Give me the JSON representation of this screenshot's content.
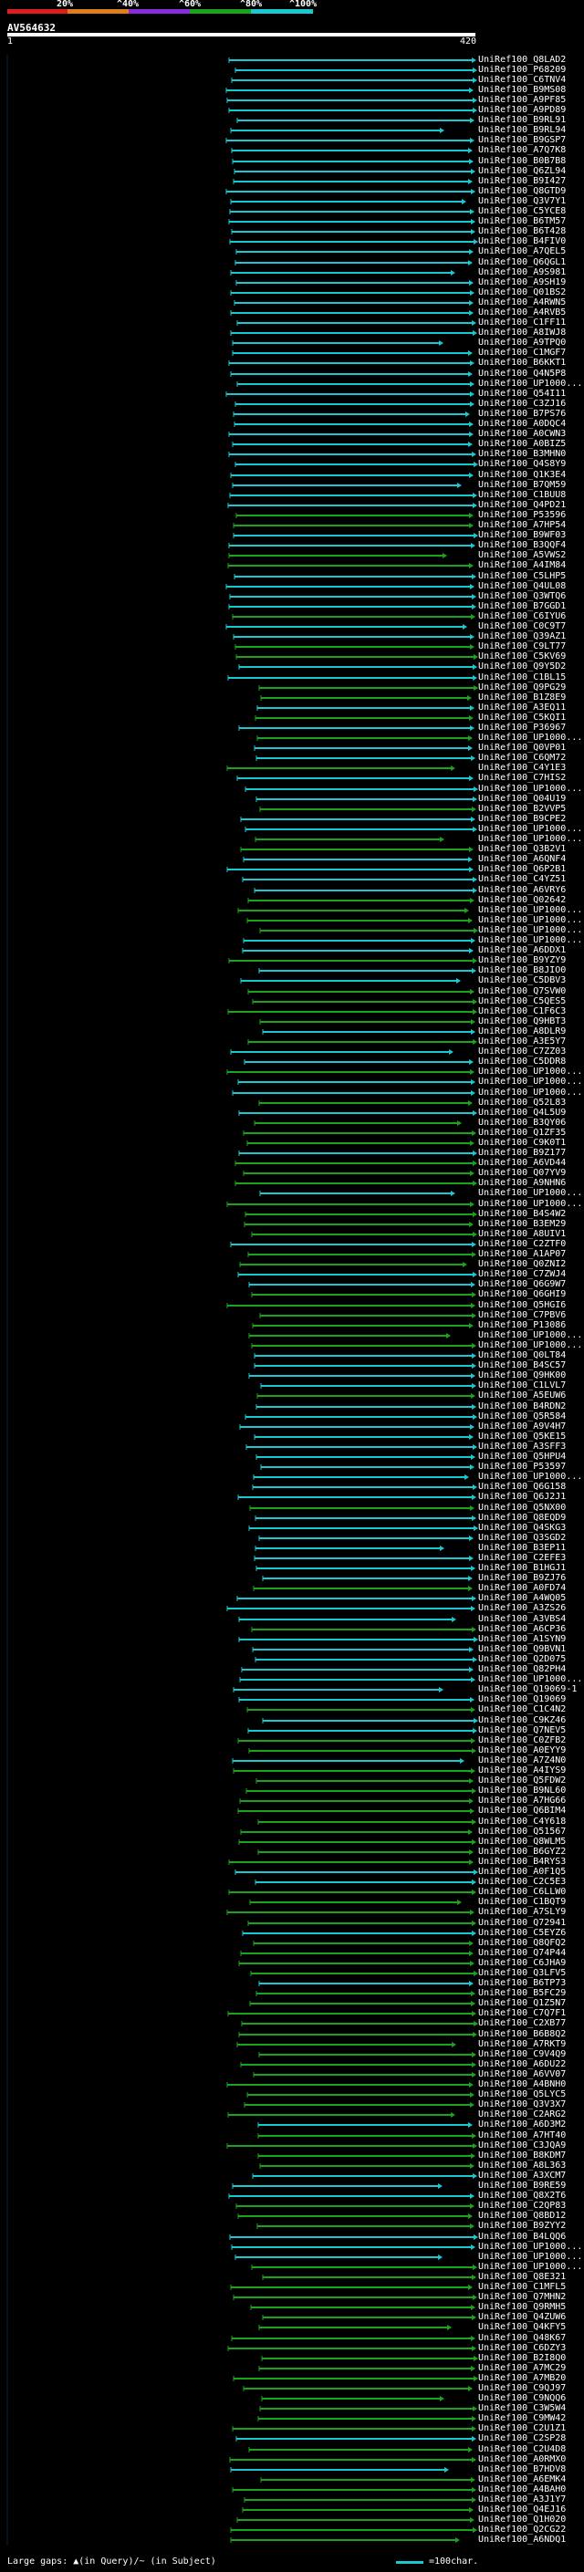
{
  "legend": {
    "labels": [
      "20%",
      "^40%",
      "^60%",
      "^80%",
      "^100%"
    ],
    "colors": [
      "#e01c1c",
      "#e07e1c",
      "#8a2be2",
      "#1ca31c",
      "#19c9d1"
    ]
  },
  "query": {
    "title": "AV564632",
    "scale_start": "1",
    "scale_end": "420"
  },
  "hits": [
    "UniRef100_Q8LAD2",
    "UniRef100_P68209",
    "UniRef100_C6TNV4",
    "UniRef100_B9MS08",
    "UniRef100_A9PF85",
    "UniRef100_A9PD89",
    "UniRef100_B9RL91",
    "UniRef100_B9RL94",
    "UniRef100_B9GSP7",
    "UniRef100_A7Q7K8",
    "UniRef100_B0B7B8",
    "UniRef100_Q6ZL94",
    "UniRef100_B9I427",
    "UniRef100_Q8GTD9",
    "UniRef100_Q3V7Y1",
    "UniRef100_C5YCE8",
    "UniRef100_B6TM57",
    "UniRef100_B6T428",
    "UniRef100_B4FIV0",
    "UniRef100_A7QEL5",
    "UniRef100_Q6QGL1",
    "UniRef100_A9S981",
    "UniRef100_A9SH19",
    "UniRef100_Q01BS2",
    "UniRef100_A4RWN5",
    "UniRef100_A4RVB5",
    "UniRef100_C1FF11",
    "UniRef100_A8IWJ8",
    "UniRef100_A9TPQ0",
    "UniRef100_C1MGF7",
    "UniRef100_B6KKT1",
    "UniRef100_Q4N5P8",
    "UniRef100_UP1000...",
    "UniRef100_Q54I11",
    "UniRef100_C3ZJ16",
    "UniRef100_B7PS76",
    "UniRef100_A0DQC4",
    "UniRef100_A0CWN3",
    "UniRef100_A0BIZ5",
    "UniRef100_B3MHN0",
    "UniRef100_Q4S8Y9",
    "UniRef100_Q1K3E4",
    "UniRef100_B7QM59",
    "UniRef100_C1BUU8",
    "UniRef100_Q4PD21",
    "UniRef100_P53596",
    "UniRef100_A7HP54",
    "UniRef100_B9WF03",
    "UniRef100_B3QQF4",
    "UniRef100_A5VWS2",
    "UniRef100_A4IM84",
    "UniRef100_C5LHP5",
    "UniRef100_Q4UL08",
    "UniRef100_Q3WTQ6",
    "UniRef100_B7GGD1",
    "UniRef100_C6IYU6",
    "UniRef100_C0C9T7",
    "UniRef100_Q39AZ1",
    "UniRef100_C9LT77",
    "UniRef100_C5KV69",
    "UniRef100_Q9Y5D2",
    "UniRef100_C1BL15",
    "UniRef100_Q9PG29",
    "UniRef100_B1Z8E9",
    "UniRef100_A3EQ11",
    "UniRef100_C5KQI1",
    "UniRef100_P36967",
    "UniRef100_UP1000...",
    "UniRef100_Q0VP01",
    "UniRef100_C6QM72",
    "UniRef100_C4Y1E3",
    "UniRef100_C7HIS2",
    "UniRef100_UP1000...",
    "UniRef100_Q04U19",
    "UniRef100_B2VVP5",
    "UniRef100_B9CPE2",
    "UniRef100_UP1000...",
    "UniRef100_UP1000...",
    "UniRef100_Q3B2V1",
    "UniRef100_A6QNF4",
    "UniRef100_Q6P2B1",
    "UniRef100_C4YZ51",
    "UniRef100_A6VRY6",
    "UniRef100_Q02642",
    "UniRef100_UP1000...",
    "UniRef100_UP1000...",
    "UniRef100_UP1000...",
    "UniRef100_UP1000...",
    "UniRef100_A6DDX1",
    "UniRef100_B9YZY9",
    "UniRef100_B8JIO0",
    "UniRef100_C5DBV3",
    "UniRef100_Q7SVW0",
    "UniRef100_C5QES5",
    "UniRef100_C1F6C3",
    "UniRef100_Q9HBT3",
    "UniRef100_A8DLR9",
    "UniRef100_A3E5Y7",
    "UniRef100_C7ZZ03",
    "UniRef100_C5DDR8",
    "UniRef100_UP1000...",
    "UniRef100_UP1000...",
    "UniRef100_UP1000...",
    "UniRef100_Q52L83",
    "UniRef100_Q4L5U9",
    "UniRef100_B3QY06",
    "UniRef100_Q1ZF35",
    "UniRef100_C9K0T1",
    "UniRef100_B9Z177",
    "UniRef100_A6VD44",
    "UniRef100_Q07YV9",
    "UniRef100_A9NHN6",
    "UniRef100_UP1000...",
    "UniRef100_UP1000...",
    "UniRef100_B4S4W2",
    "UniRef100_B3EM29",
    "UniRef100_A8UIV1",
    "UniRef100_C2ZTF0",
    "UniRef100_A1AP07",
    "UniRef100_Q0ZNI2",
    "UniRef100_C7ZWJ4",
    "UniRef100_Q6G9W7",
    "UniRef100_Q6GHI9",
    "UniRef100_Q5HGI6",
    "UniRef100_C7PBV6",
    "UniRef100_P13086",
    "UniRef100_UP1000...",
    "UniRef100_UP1000...",
    "UniRef100_Q0LT84",
    "UniRef100_B4SC57",
    "UniRef100_Q9HK00",
    "UniRef100_C1LVL7",
    "UniRef100_A5EUW6",
    "UniRef100_B4RDN2",
    "UniRef100_Q5R584",
    "UniRef100_A9V4H7",
    "UniRef100_Q5KE15",
    "UniRef100_A3SFF3",
    "UniRef100_Q5HPU4",
    "UniRef100_P53597",
    "UniRef100_UP1000...",
    "UniRef100_Q6G158",
    "UniRef100_Q6J2J1",
    "UniRef100_Q5NX00",
    "UniRef100_Q8EQD9",
    "UniRef100_Q4SKG3",
    "UniRef100_Q3SGD2",
    "UniRef100_B3EP11",
    "UniRef100_C2EFE3",
    "UniRef100_B1HGJ1",
    "UniRef100_B9ZJ76",
    "UniRef100_A0FD74",
    "UniRef100_A4WQ05",
    "UniRef100_A3ZS26",
    "UniRef100_A3VBS4",
    "UniRef100_A6CP36",
    "UniRef100_A1SYN9",
    "UniRef100_Q9BVN1",
    "UniRef100_Q2D075",
    "UniRef100_Q82PH4",
    "UniRef100_UP1000...",
    "UniRef100_Q19069-1",
    "UniRef100_Q19069",
    "UniRef100_C1C4N2",
    "UniRef100_C9KZ46",
    "UniRef100_Q7NEV5",
    "UniRef100_C0ZFB2",
    "UniRef100_A0EYY9",
    "UniRef100_A7Z4N0",
    "UniRef100_A4IYS9",
    "UniRef100_Q5FDW2",
    "UniRef100_B9NL60",
    "UniRef100_A7HG66",
    "UniRef100_Q6BIM4",
    "UniRef100_C4Y618",
    "UniRef100_Q51567",
    "UniRef100_Q8WLM5",
    "UniRef100_B6GYZ2",
    "UniRef100_B4RYS3",
    "UniRef100_A0F1Q5",
    "UniRef100_C2C5E3",
    "UniRef100_C6LLW0",
    "UniRef100_C1BQT9",
    "UniRef100_A7SLY9",
    "UniRef100_Q72941",
    "UniRef100_C5EYZ6",
    "UniRef100_Q8QFQ2",
    "UniRef100_Q74P44",
    "UniRef100_C6JHA9",
    "UniRef100_Q3LFV5",
    "UniRef100_B6TP73",
    "UniRef100_B5FC29",
    "UniRef100_Q1Z5N7",
    "UniRef100_C7Q7F1",
    "UniRef100_C2XB77",
    "UniRef100_B6B8Q2",
    "UniRef100_A7RKT9",
    "UniRef100_C9V4Q9",
    "UniRef100_A6DU22",
    "UniRef100_A6VV07",
    "UniRef100_A4BNH0",
    "UniRef100_Q5LYC5",
    "UniRef100_Q3V3X7",
    "UniRef100_C2ARG2",
    "UniRef100_A6D3M2",
    "UniRef100_A7HT40",
    "UniRef100_C3JQA9",
    "UniRef100_B8KDM7",
    "UniRef100_A8L363",
    "UniRef100_A3XCM7",
    "UniRef100_B9RE59",
    "UniRef100_Q8X2T6",
    "UniRef100_C2QP83",
    "UniRef100_Q8BD12",
    "UniRef100_B9ZYY2",
    "UniRef100_B4LQQ6",
    "UniRef100_UP1000...",
    "UniRef100_UP1000...",
    "UniRef100_UP1000...",
    "UniRef100_Q8E321",
    "UniRef100_C1MFL5",
    "UniRef100_Q7MHN2",
    "UniRef100_Q9RMH5",
    "UniRef100_Q4ZUW6",
    "UniRef100_Q4KFY5",
    "UniRef100_Q48K67",
    "UniRef100_C6DZY3",
    "UniRef100_B2I8Q0",
    "UniRef100_A7MC29",
    "UniRef100_A7MB20",
    "UniRef100_C9QJ97",
    "UniRef100_C9NQQ6",
    "UniRef100_C3W5W4",
    "UniRef100_C9MW42",
    "UniRef100_C2U1Z1",
    "UniRef100_C2SP28",
    "UniRef100_C2U4D8",
    "UniRef100_A0RMX0",
    "UniRef100_B7HDV8",
    "UniRef100_A6EMK4",
    "UniRef100_A4BAH0",
    "UniRef100_A3J1Y7",
    "UniRef100_Q4EJ16",
    "UniRef100_Q1H020",
    "UniRef100_Q2CG22",
    "UniRef100_A6NDQ1"
  ],
  "footer": {
    "gaps_text": "Large gaps: ▲(in Query)/~ (in Subject)",
    "scale_text": "=100char."
  }
}
